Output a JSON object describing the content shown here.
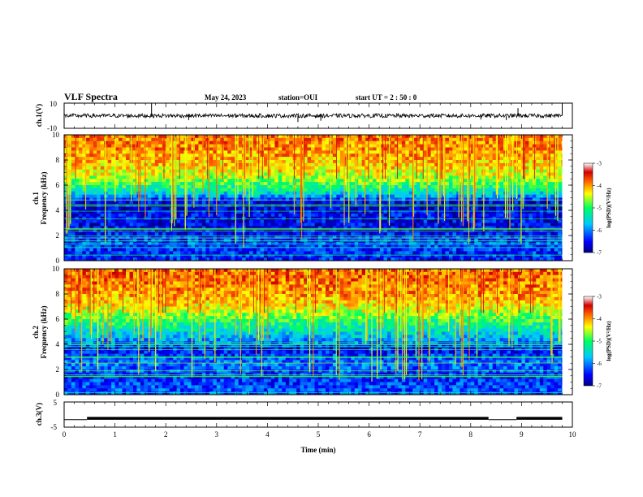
{
  "header": {
    "title": "VLF Spectra",
    "date": "May 24, 2023",
    "station": "station=OUI",
    "start_ut": "start  UT =  2 : 50 : 0"
  },
  "chart_data": [
    {
      "type": "line",
      "id": "ch1-waveform",
      "ylabel": "ch.1(V)",
      "ylim": [
        -10,
        10
      ],
      "yticks": [
        "10",
        "-10"
      ],
      "xlim": [
        0,
        10
      ],
      "baseline_value": 0,
      "spikes": [
        {
          "x": 1.72,
          "y": 10
        },
        {
          "x": 2.45,
          "y": -3.5
        },
        {
          "x": 4.6,
          "y": -5
        },
        {
          "x": 5.05,
          "y": -4
        },
        {
          "x": 8.2,
          "y": -3
        },
        {
          "x": 8.7,
          "y": -3.5
        },
        {
          "x": 8.93,
          "y": 6
        },
        {
          "x": 9.8,
          "y": 10
        }
      ]
    },
    {
      "type": "heatmap",
      "id": "ch1-spectrogram",
      "ylabel_top": "ch.1",
      "ylabel": "Frequency (kHz)",
      "ylim": [
        0,
        10
      ],
      "yticks": [
        "0",
        "2",
        "4",
        "6",
        "8",
        "10"
      ],
      "xlim": [
        0,
        10
      ],
      "colorbar": {
        "label": "log(PSD)(V²/Hz)",
        "ticks": [
          "-3",
          "-4",
          "-5",
          "-6",
          "-7"
        ],
        "range": [
          -7,
          -3
        ]
      },
      "layers_khz_log_psd": [
        {
          "f": 0.5,
          "v": -6.4
        },
        {
          "f": 1.5,
          "v": -6.2
        },
        {
          "f": 2.5,
          "v": -6.6
        },
        {
          "f": 3.5,
          "v": -6.5
        },
        {
          "f": 4.5,
          "v": -6.7
        },
        {
          "f": 5.5,
          "v": -5.4
        },
        {
          "f": 6.5,
          "v": -4.6
        },
        {
          "f": 7.5,
          "v": -4.2
        },
        {
          "f": 8.5,
          "v": -4.0
        },
        {
          "f": 9.5,
          "v": -3.9
        }
      ]
    },
    {
      "type": "heatmap",
      "id": "ch2-spectrogram",
      "ylabel_top": "ch.2",
      "ylabel": "Frequency (kHz)",
      "ylim": [
        0,
        10
      ],
      "yticks": [
        "0",
        "2",
        "4",
        "6",
        "8",
        "10"
      ],
      "xlim": [
        0,
        10
      ],
      "colorbar": {
        "label": "log(PSD)(V²/Hz)",
        "ticks": [
          "-3",
          "-4",
          "-5",
          "-6",
          "-7"
        ],
        "range": [
          -7,
          -3
        ]
      },
      "layers_khz_log_psd": [
        {
          "f": 0.5,
          "v": -6.2
        },
        {
          "f": 1.5,
          "v": -6.4
        },
        {
          "f": 2.5,
          "v": -6.0
        },
        {
          "f": 3.5,
          "v": -6.5
        },
        {
          "f": 4.5,
          "v": -5.8
        },
        {
          "f": 5.5,
          "v": -5.2
        },
        {
          "f": 6.5,
          "v": -4.6
        },
        {
          "f": 7.5,
          "v": -4.1
        },
        {
          "f": 8.5,
          "v": -3.9
        },
        {
          "f": 9.5,
          "v": -3.8
        }
      ]
    },
    {
      "type": "line",
      "id": "ch3-waveform",
      "ylabel": "ch.3(V)",
      "ylim": [
        -5,
        5
      ],
      "yticks": [
        "5",
        "-5"
      ],
      "xlim": [
        0,
        10
      ],
      "xlabel": "Time (min)",
      "xticks": [
        "0",
        "1",
        "2",
        "3",
        "4",
        "5",
        "6",
        "7",
        "8",
        "9",
        "10"
      ],
      "segments": [
        {
          "x0": 0,
          "x1": 0.45,
          "y": -2
        },
        {
          "x0": 0.45,
          "x1": 8.35,
          "y": -1.5
        },
        {
          "x0": 8.35,
          "x1": 8.9,
          "y": -2
        },
        {
          "x0": 8.9,
          "x1": 9.8,
          "y": -1.5
        }
      ]
    }
  ]
}
